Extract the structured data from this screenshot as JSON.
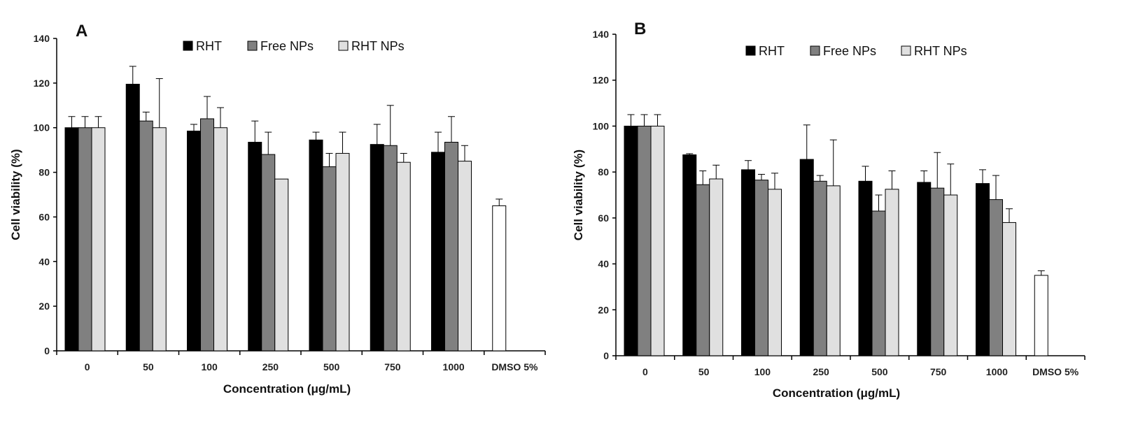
{
  "chart_data": [
    {
      "type": "bar",
      "panel_label": "A",
      "categories": [
        "0",
        "50",
        "100",
        "250",
        "500",
        "750",
        "1000",
        "DMSO 5%"
      ],
      "series": [
        {
          "name": "RHT",
          "color": "#000000",
          "values": [
            100,
            119.5,
            98.5,
            93.5,
            94.5,
            92.5,
            89,
            null
          ],
          "errors": [
            5,
            8,
            3,
            9.5,
            3.5,
            9,
            9,
            null
          ]
        },
        {
          "name": "Free NPs",
          "color": "#808080",
          "values": [
            100,
            103,
            104,
            88,
            82.5,
            92,
            93.5,
            null
          ],
          "errors": [
            5,
            4,
            10,
            10,
            6,
            18,
            11.5,
            null
          ]
        },
        {
          "name": "RHT NPs",
          "color": "#e0e0e0",
          "values": [
            100,
            100,
            100,
            77,
            88.5,
            84.5,
            85,
            null
          ],
          "errors": [
            5,
            22,
            9,
            0,
            9.5,
            4,
            7,
            null
          ]
        },
        {
          "name": "DMSO 5%",
          "color": "#ffffff",
          "values": [
            null,
            null,
            null,
            null,
            null,
            null,
            null,
            65
          ],
          "errors": [
            null,
            null,
            null,
            null,
            null,
            null,
            null,
            3
          ],
          "in_legend": false
        }
      ],
      "xlabel": "Concentration (μg/mL)",
      "ylabel": "Cell viability (%)",
      "ylim": [
        0,
        140
      ],
      "yticks": [
        0,
        20,
        40,
        60,
        80,
        100,
        120,
        140
      ],
      "grid": false,
      "legend": "top"
    },
    {
      "type": "bar",
      "panel_label": "B",
      "categories": [
        "0",
        "50",
        "100",
        "250",
        "500",
        "750",
        "1000",
        "DMSO 5%"
      ],
      "series": [
        {
          "name": "RHT",
          "color": "#000000",
          "values": [
            100,
            87.5,
            81,
            85.5,
            76,
            75.5,
            75,
            null
          ],
          "errors": [
            5,
            0.5,
            4,
            15,
            6.5,
            5,
            6,
            null
          ]
        },
        {
          "name": "Free NPs",
          "color": "#808080",
          "values": [
            100,
            74.5,
            76.5,
            76,
            63,
            73,
            68,
            null
          ],
          "errors": [
            5,
            6,
            2.5,
            2.5,
            7,
            15.5,
            10.5,
            null
          ]
        },
        {
          "name": "RHT NPs",
          "color": "#e0e0e0",
          "values": [
            100,
            77,
            72.5,
            74,
            72.5,
            70,
            58,
            null
          ],
          "errors": [
            5,
            6,
            7,
            20,
            8,
            13.5,
            6,
            null
          ]
        },
        {
          "name": "DMSO 5%",
          "color": "#ffffff",
          "values": [
            null,
            null,
            null,
            null,
            null,
            null,
            null,
            35
          ],
          "errors": [
            null,
            null,
            null,
            null,
            null,
            null,
            null,
            2
          ],
          "in_legend": false
        }
      ],
      "xlabel": "Concentration (μg/mL)",
      "ylabel": "Cell viability (%)",
      "ylim": [
        0,
        140
      ],
      "yticks": [
        0,
        20,
        40,
        60,
        80,
        100,
        120,
        140
      ],
      "grid": false,
      "legend": "top"
    }
  ]
}
